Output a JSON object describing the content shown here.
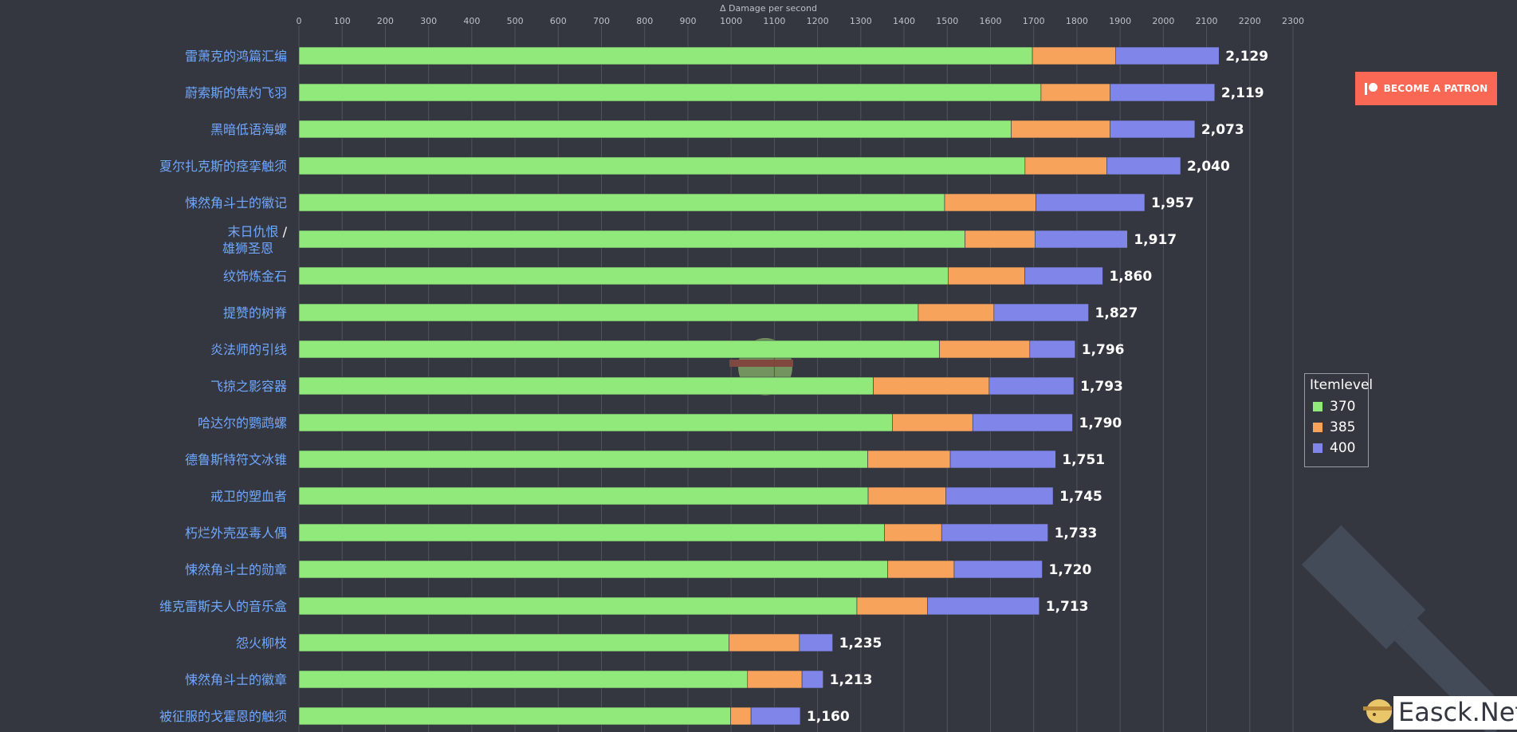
{
  "chart_data": {
    "type": "bar",
    "orientation": "horizontal",
    "stacked": true,
    "xlabel": "Δ Damage per second",
    "xlim": [
      0,
      2300
    ],
    "x_ticks": [
      0,
      100,
      200,
      300,
      400,
      500,
      600,
      700,
      800,
      900,
      1000,
      1100,
      1200,
      1300,
      1400,
      1500,
      1600,
      1700,
      1800,
      1900,
      2000,
      2100,
      2200,
      2300
    ],
    "grid": true,
    "legend_position": "right",
    "legend_title": "Itemlevel",
    "categories": [
      "雷萧克的鸿篇汇编",
      "蔚索斯的焦灼飞羽",
      "黑暗低语海螺",
      "夏尔扎克斯的痉挛触须",
      "悚然角斗士的徽记",
      "末日仇恨 / 雄狮圣恩",
      "纹饰炼金石",
      "提赞的树脊",
      "炎法师的引线",
      "飞掠之影容器",
      "哈达尔的鹦鹉螺",
      "德鲁斯特符文冰锥",
      "戒卫的塑血者",
      "朽烂外壳巫毒人偶",
      "悚然角斗士的勋章",
      "维克雷斯夫人的音乐盒",
      "怨火柳枝",
      "悚然角斗士的徽章",
      "被征服的戈霍恩的触须"
    ],
    "series": [
      {
        "name": "370",
        "color": "#91e97b",
        "values": [
          1697,
          1717,
          1648,
          1680,
          1494,
          1541,
          1502,
          1433,
          1482,
          1329,
          1373,
          1316,
          1317,
          1355,
          1362,
          1291,
          995,
          1038,
          999
        ]
      },
      {
        "name": "385",
        "color": "#f7a35c",
        "values": [
          193,
          160,
          229,
          189,
          211,
          162,
          177,
          175,
          209,
          268,
          186,
          191,
          180,
          132,
          154,
          163,
          163,
          126,
          47
        ]
      },
      {
        "name": "400",
        "color": "#8085e9",
        "values": [
          239,
          242,
          196,
          171,
          252,
          214,
          181,
          219,
          105,
          196,
          231,
          244,
          248,
          246,
          204,
          259,
          77,
          49,
          114
        ]
      }
    ],
    "totals": [
      "2,129",
      "2,119",
      "2,073",
      "2,040",
      "1,957",
      "1,917",
      "1,860",
      "1,827",
      "1,796",
      "1,793",
      "1,790",
      "1,751",
      "1,745",
      "1,733",
      "1,720",
      "1,713",
      "1,235",
      "1,213",
      "1,160"
    ]
  },
  "patron": {
    "label": "BECOME A PATRON",
    "icon": "patreon-icon"
  },
  "watermark": {
    "text": "Easck.Net"
  },
  "colors": {
    "background": "#343640",
    "category_label": "#6fa8ff",
    "patron": "#f96854"
  }
}
